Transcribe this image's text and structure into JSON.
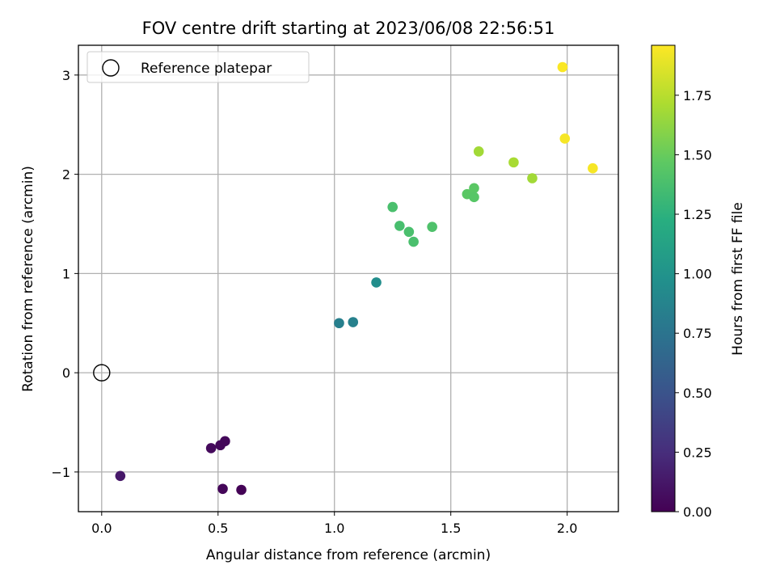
{
  "chart_data": {
    "type": "scatter",
    "title": "FOV centre drift starting at 2023/06/08 22:56:51",
    "xlabel": "Angular distance from reference (arcmin)",
    "ylabel": "Rotation from reference (arcmin)",
    "xlim": [
      -0.1,
      2.22
    ],
    "ylim": [
      -1.4,
      3.3
    ],
    "xticks": [
      "0.0",
      "0.5",
      "1.0",
      "1.5",
      "2.0"
    ],
    "xtick_values": [
      0.0,
      0.5,
      1.0,
      1.5,
      2.0
    ],
    "yticks": [
      "−1",
      "0",
      "1",
      "2",
      "3"
    ],
    "ytick_values": [
      -1,
      0,
      1,
      2,
      3
    ],
    "grid": true,
    "legend": {
      "placement": "upper-left",
      "entries": [
        "Reference platepar"
      ]
    },
    "reference_point": {
      "x": 0.0,
      "y": 0.0,
      "marker": "open-circle"
    },
    "colorbar": {
      "label": "Hours from first FF file",
      "colormap": "viridis",
      "range": [
        0.0,
        1.96
      ],
      "ticks": [
        "0.00",
        "0.25",
        "0.50",
        "0.75",
        "1.00",
        "1.25",
        "1.50",
        "1.75"
      ],
      "tick_values": [
        0.0,
        0.25,
        0.5,
        0.75,
        1.0,
        1.25,
        1.5,
        1.75
      ]
    },
    "points": [
      {
        "x": 0.08,
        "y": -1.04,
        "c": 0.13
      },
      {
        "x": 0.47,
        "y": -0.76,
        "c": 0.05
      },
      {
        "x": 0.51,
        "y": -0.73,
        "c": 0.04
      },
      {
        "x": 0.53,
        "y": -0.69,
        "c": 0.04
      },
      {
        "x": 0.52,
        "y": -1.17,
        "c": 0.03
      },
      {
        "x": 0.6,
        "y": -1.18,
        "c": 0.01
      },
      {
        "x": 1.02,
        "y": 0.5,
        "c": 0.84
      },
      {
        "x": 1.08,
        "y": 0.51,
        "c": 0.85
      },
      {
        "x": 1.18,
        "y": 0.91,
        "c": 0.96
      },
      {
        "x": 1.25,
        "y": 1.67,
        "c": 1.38
      },
      {
        "x": 1.28,
        "y": 1.48,
        "c": 1.37
      },
      {
        "x": 1.32,
        "y": 1.42,
        "c": 1.38
      },
      {
        "x": 1.34,
        "y": 1.32,
        "c": 1.38
      },
      {
        "x": 1.42,
        "y": 1.47,
        "c": 1.4
      },
      {
        "x": 1.57,
        "y": 1.8,
        "c": 1.45
      },
      {
        "x": 1.6,
        "y": 1.86,
        "c": 1.45
      },
      {
        "x": 1.6,
        "y": 1.77,
        "c": 1.44
      },
      {
        "x": 1.62,
        "y": 2.23,
        "c": 1.68
      },
      {
        "x": 1.77,
        "y": 2.12,
        "c": 1.7
      },
      {
        "x": 1.85,
        "y": 1.96,
        "c": 1.68
      },
      {
        "x": 1.98,
        "y": 3.08,
        "c": 1.95
      },
      {
        "x": 1.99,
        "y": 2.36,
        "c": 1.94
      },
      {
        "x": 2.11,
        "y": 2.06,
        "c": 1.94
      }
    ]
  }
}
